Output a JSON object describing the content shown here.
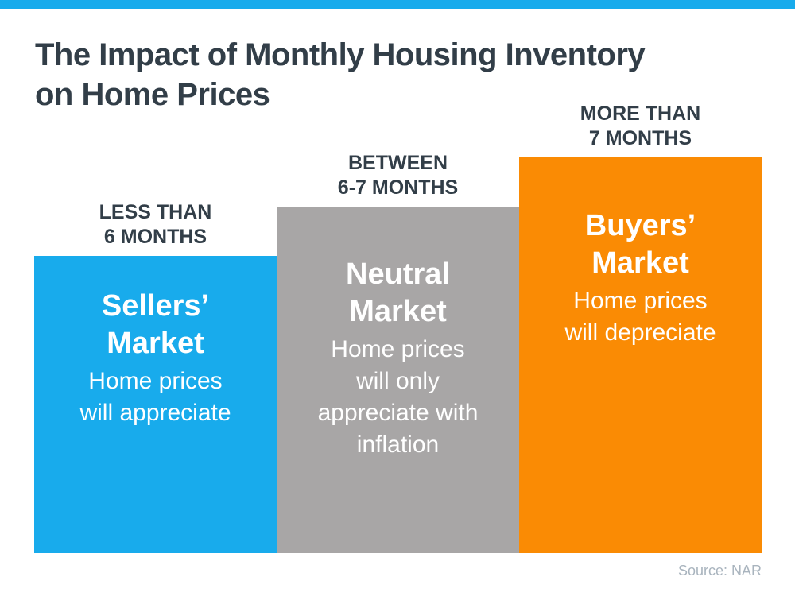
{
  "page": {
    "title": "The Impact of Monthly Housing Inventory\non Home Prices",
    "source_label": "Source: NAR"
  },
  "colors": {
    "accent_blue": "#18ABEC",
    "neutral_gray": "#A8A6A6",
    "accent_orange": "#FA8B04",
    "heading_dark": "#323E48",
    "source_text": "#A9B4BE",
    "bar_text": "#FFFFFF"
  },
  "display": {
    "bars": [
      {
        "label": "LESS THAN\n6 MONTHS",
        "heading": "Sellers’\nMarket",
        "subtitle": "Home prices\nwill appreciate"
      },
      {
        "label": "BETWEEN\n6-7 MONTHS",
        "heading": "Neutral\nMarket",
        "subtitle": "Home prices\nwill only\nappreciate with\ninflation"
      },
      {
        "label": "MORE THAN\n7 MONTHS",
        "heading": "Buyers’\nMarket",
        "subtitle": "Home prices\nwill depreciate"
      }
    ]
  },
  "chart_data": {
    "type": "bar",
    "title": "The Impact of Monthly Housing Inventory on Home Prices",
    "categories": [
      "Less than 6 months",
      "Between 6-7 months",
      "More than 7 months"
    ],
    "series": [
      {
        "name": "Monthly housing inventory",
        "values": [
          374,
          436,
          499
        ],
        "values_unit": "relative bar height (px), qualitative infographic — no numeric axis"
      }
    ],
    "bars": [
      {
        "category": "Less than 6 months",
        "market": "Sellers’ Market",
        "effect": "Home prices will appreciate",
        "color": "#18ABEC"
      },
      {
        "category": "Between 6-7 months",
        "market": "Neutral Market",
        "effect": "Home prices will only appreciate with inflation",
        "color": "#A8A6A6"
      },
      {
        "category": "More than 7 months",
        "market": "Buyers’ Market",
        "effect": "Home prices will depreciate",
        "color": "#FA8B04"
      }
    ],
    "xlabel": "",
    "ylabel": "",
    "grid": false,
    "legend_position": "none",
    "source": "NAR"
  }
}
